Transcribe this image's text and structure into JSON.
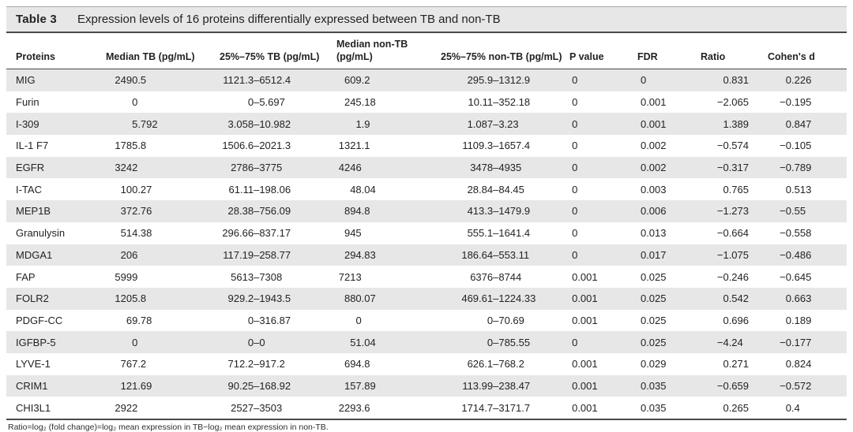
{
  "colors": {
    "stripe": "#e7e7e7",
    "rule": "#4a4a4a",
    "text": "#232323"
  },
  "table": {
    "label": "Table 3",
    "caption": "Expression levels of 16 proteins differentially expressed between TB and non-TB",
    "columns": [
      "Proteins",
      "Median TB (pg/mL)",
      "25%–75% TB (pg/mL)",
      "Median non-TB (pg/mL)",
      "25%–75% non-TB (pg/mL)",
      "P value",
      "FDR",
      "Ratio",
      "Cohen's d"
    ],
    "rows": [
      [
        "MIG",
        "2490.5",
        "1121.3–6512.4",
        "609.2",
        "295.9–1312.9",
        "0",
        "0",
        "0.831",
        "0.226"
      ],
      [
        "Furin",
        "0",
        "0–5.697",
        "245.18",
        "10.11–352.18",
        "0",
        "0.001",
        "−2.065",
        "−0.195"
      ],
      [
        "I-309",
        "5.792",
        "3.058–10.982",
        "1.9",
        "1.087–3.23",
        "0",
        "0.001",
        "1.389",
        "0.847"
      ],
      [
        "IL-1 F7",
        "1785.8",
        "1506.6–2021.3",
        "1321.1",
        "1109.3–1657.4",
        "0",
        "0.002",
        "−0.574",
        "−0.105"
      ],
      [
        "EGFR",
        "3242",
        "2786–3775",
        "4246",
        "3478–4935",
        "0",
        "0.002",
        "−0.317",
        "−0.789"
      ],
      [
        "I-TAC",
        "100.27",
        "61.11–198.06",
        "48.04",
        "28.84–84.45",
        "0",
        "0.003",
        "0.765",
        "0.513"
      ],
      [
        "MEP1B",
        "372.76",
        "28.38–756.09",
        "894.8",
        "413.3–1479.9",
        "0",
        "0.006",
        "−1.273",
        "−0.55"
      ],
      [
        "Granulysin",
        "514.38",
        "296.66–837.17",
        "945",
        "555.1–1641.4",
        "0",
        "0.013",
        "−0.664",
        "−0.558"
      ],
      [
        "MDGA1",
        "206",
        "117.19–258.77",
        "294.83",
        "186.64–553.11",
        "0",
        "0.017",
        "−1.075",
        "−0.486"
      ],
      [
        "FAP",
        "5999",
        "5613–7308",
        "7213",
        "6376–8744",
        "0.001",
        "0.025",
        "−0.246",
        "−0.645"
      ],
      [
        "FOLR2",
        "1205.8",
        "929.2–1943.5",
        "880.07",
        "469.61–1224.33",
        "0.001",
        "0.025",
        "0.542",
        "0.663"
      ],
      [
        "PDGF-CC",
        "69.78",
        "0–316.87",
        "0",
        "0–70.69",
        "0.001",
        "0.025",
        "0.696",
        "0.189"
      ],
      [
        "IGFBP-5",
        "0",
        "0–0",
        "51.04",
        "0–785.55",
        "0",
        "0.025",
        "−4.24",
        "−0.177"
      ],
      [
        "LYVE-1",
        "767.2",
        "712.2–917.2",
        "694.8",
        "626.1–768.2",
        "0.001",
        "0.029",
        "0.271",
        "0.824"
      ],
      [
        "CRIM1",
        "121.69",
        "90.25–168.92",
        "157.89",
        "113.99–238.47",
        "0.001",
        "0.035",
        "−0.659",
        "−0.572"
      ],
      [
        "CHI3L1",
        "2922",
        "2527–3503",
        "2293.6",
        "1714.7–3171.7",
        "0.001",
        "0.035",
        "0.265",
        "0.4"
      ]
    ],
    "footnote": "Ratio=log₂ (fold change)=log₂ mean expression in TB−log₂ mean expression in non-TB."
  }
}
